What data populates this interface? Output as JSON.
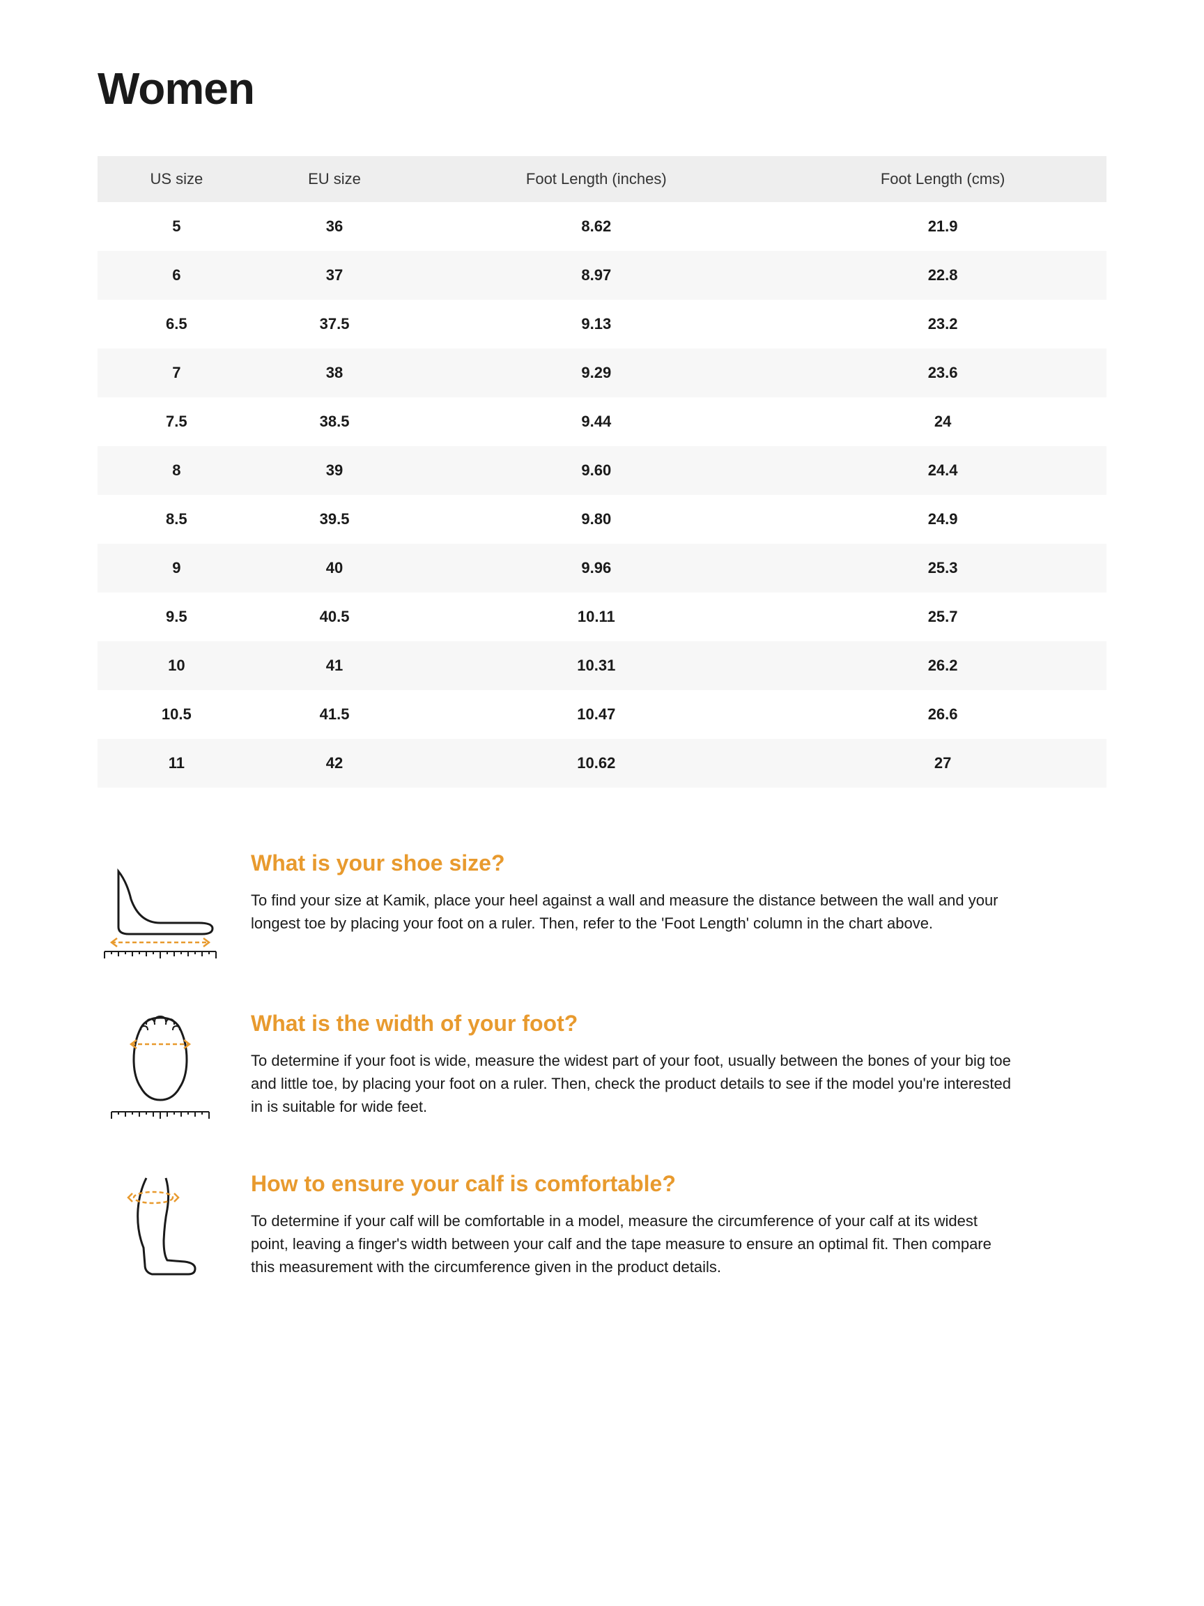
{
  "title": "Women",
  "colors": {
    "accent": "#e89a2e",
    "header_bg": "#eeeeee",
    "row_stripe": "#f7f7f7",
    "text": "#1a1a1a"
  },
  "table": {
    "columns": [
      "US size",
      "EU size",
      "Foot Length (inches)",
      "Foot Length (cms)"
    ],
    "rows": [
      [
        "5",
        "36",
        "8.62",
        "21.9"
      ],
      [
        "6",
        "37",
        "8.97",
        "22.8"
      ],
      [
        "6.5",
        "37.5",
        "9.13",
        "23.2"
      ],
      [
        "7",
        "38",
        "9.29",
        "23.6"
      ],
      [
        "7.5",
        "38.5",
        "9.44",
        "24"
      ],
      [
        "8",
        "39",
        "9.60",
        "24.4"
      ],
      [
        "8.5",
        "39.5",
        "9.80",
        "24.9"
      ],
      [
        "9",
        "40",
        "9.96",
        "25.3"
      ],
      [
        "9.5",
        "40.5",
        "10.11",
        "25.7"
      ],
      [
        "10",
        "41",
        "10.31",
        "26.2"
      ],
      [
        "10.5",
        "41.5",
        "10.47",
        "26.6"
      ],
      [
        "11",
        "42",
        "10.62",
        "27"
      ]
    ]
  },
  "info": [
    {
      "icon": "foot-length-icon",
      "heading": "What is your shoe size?",
      "body": "To find your size at Kamik, place your heel against a wall and measure the distance between the wall and your longest toe by placing your foot on a ruler. Then, refer to the 'Foot Length' column in the chart above."
    },
    {
      "icon": "foot-width-icon",
      "heading": "What is the width of your foot?",
      "body": "To determine if your foot is wide, measure the widest part of your foot, usually between the bones of your big toe and little toe, by placing your foot on a ruler. Then, check the product details to see if the model you're interested in is suitable for wide feet."
    },
    {
      "icon": "calf-icon",
      "heading": "How to ensure your calf is comfortable?",
      "body": "To determine if your calf will be comfortable in a model, measure the circumference of your calf at its widest point, leaving a finger's width between your calf and the tape measure to ensure an optimal fit. Then compare this measurement with the circumference given in the product details."
    }
  ]
}
